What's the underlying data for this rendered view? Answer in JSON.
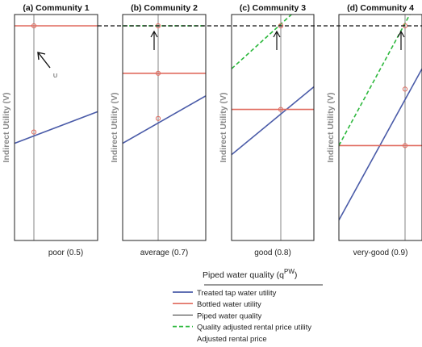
{
  "figure": {
    "xlabel_prefix": "Piped water quality (q",
    "xlabel_sup": "PW",
    "xlabel_suffix": ")",
    "ylabel": "Indirect Utility (V)",
    "annotation_u": "U"
  },
  "colors": {
    "treated": "#4a5ba8",
    "bottled": "#e06a5e",
    "piped": "#666666",
    "adjusted": "#2db83d",
    "reference": "#111111",
    "frame": "#222222"
  },
  "legend": {
    "items": [
      {
        "key": "treated",
        "label": "Treated tap water utility",
        "style": "solid"
      },
      {
        "key": "bottled",
        "label": "Bottled water utility",
        "style": "solid"
      },
      {
        "key": "piped",
        "label": "Piped water quality",
        "style": "thin"
      },
      {
        "key": "adjusted",
        "label": "Quality adjusted rental price utility",
        "style": "dashed"
      },
      {
        "key": "none",
        "label": "Adjusted rental price",
        "style": "none"
      }
    ]
  },
  "chart_data": [
    {
      "type": "line",
      "title": "(a) Community 1",
      "quality_label": "poor (0.5)",
      "quality": 0.5,
      "series": [
        {
          "name": "Treated tap water utility",
          "y_left": 0.43,
          "y_right": 0.57
        },
        {
          "name": "Bottled water utility",
          "y_left": 0.95,
          "y_right": 0.95
        }
      ],
      "marker_y": [
        0.95,
        0.48
      ],
      "arrow": "pointer"
    },
    {
      "type": "line",
      "title": "(b) Community 2",
      "quality_label": "average (0.7)",
      "quality": 0.7,
      "series": [
        {
          "name": "Treated tap water utility",
          "y_left": 0.43,
          "y_right": 0.64
        },
        {
          "name": "Bottled water utility",
          "y_left": 0.74,
          "y_right": 0.74
        },
        {
          "name": "Quality adjusted rental price utility",
          "y_left": 0.95,
          "y_right": 0.95
        }
      ],
      "marker_y": [
        0.74,
        0.54,
        0.95
      ],
      "arrow": "up"
    },
    {
      "type": "line",
      "title": "(c) Community 3",
      "quality_label": "good (0.8)",
      "quality": 0.8,
      "series": [
        {
          "name": "Treated tap water utility",
          "y_left": 0.38,
          "y_right": 0.68
        },
        {
          "name": "Bottled water utility",
          "y_left": 0.58,
          "y_right": 0.58
        },
        {
          "name": "Quality adjusted rental price utility",
          "y_left": 0.76,
          "y_right": 1.09
        }
      ],
      "marker_y": [
        0.58,
        0.95
      ],
      "arrow": "up"
    },
    {
      "type": "line",
      "title": "(d) Community 4",
      "quality_label": "very-good (0.9)",
      "quality": 0.9,
      "series": [
        {
          "name": "Treated tap water utility",
          "y_left": 0.09,
          "y_right": 0.76
        },
        {
          "name": "Bottled water utility",
          "y_left": 0.42,
          "y_right": 0.42
        },
        {
          "name": "Quality adjusted rental price utility",
          "y_left": 0.42,
          "y_right": 1.1
        }
      ],
      "marker_y": [
        0.42,
        0.67,
        0.95
      ],
      "arrow": "up"
    }
  ]
}
